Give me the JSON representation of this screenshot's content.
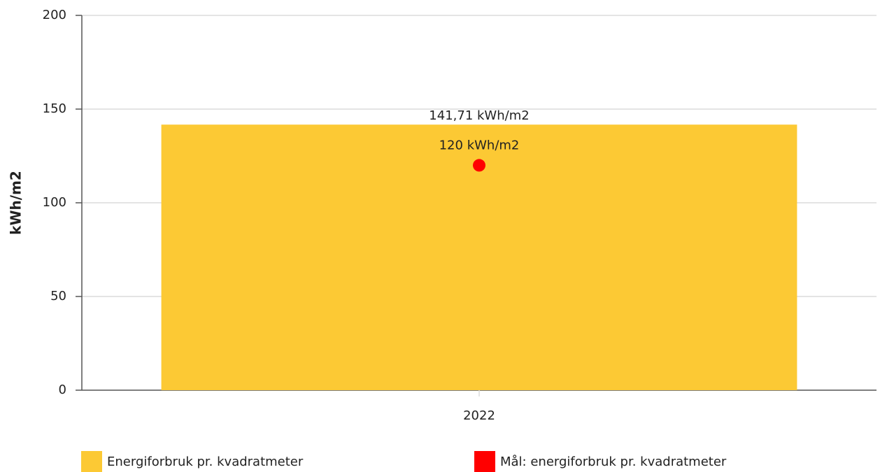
{
  "chart_data": {
    "type": "bar",
    "categories": [
      "2022"
    ],
    "ylabel": "kWh/m2",
    "ylim": [
      0,
      200
    ],
    "yticks": [
      0,
      50,
      100,
      150,
      200
    ],
    "grid": true,
    "series": [
      {
        "name": "Energiforbruk pr. kvadratmeter",
        "type": "bar",
        "color": "#fcc934",
        "values": [
          141.71
        ],
        "value_labels": [
          "141,71 kWh/m2"
        ]
      },
      {
        "name": "Mål: energiforbruk pr. kvadratmeter",
        "type": "scatter",
        "color": "#ff0000",
        "values": [
          120
        ],
        "value_labels": [
          "120 kWh/m2"
        ]
      }
    ]
  }
}
